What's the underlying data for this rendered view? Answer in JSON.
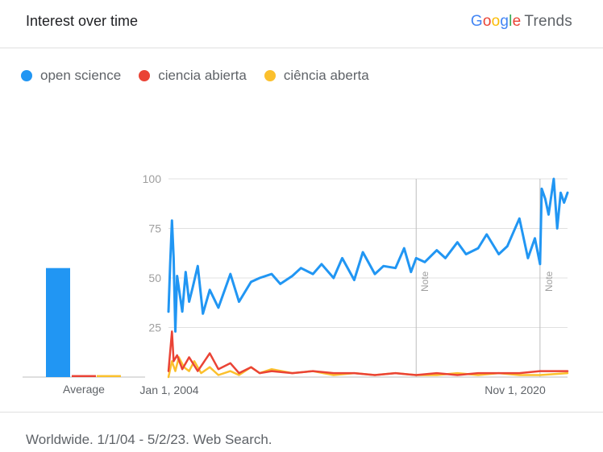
{
  "header": {
    "title": "Interest over time",
    "brand": {
      "letters": [
        "G",
        "o",
        "o",
        "g",
        "l",
        "e"
      ],
      "product": "Trends"
    }
  },
  "legend": [
    {
      "label": "open science",
      "color": "#2196F3"
    },
    {
      "label": "ciencia abierta",
      "color": "#EA4335"
    },
    {
      "label": "ciência aberta",
      "color": "#FBC02D"
    }
  ],
  "footer": {
    "text": "Worldwide. 1/1/04 - 5/2/23. Web Search."
  },
  "chart_data": {
    "type": "line",
    "title": "",
    "ylim": [
      0,
      100
    ],
    "yticks": [
      25,
      50,
      75,
      100
    ],
    "x_tick_labels": [
      "Jan 1, 2004",
      "Nov 1, 2020"
    ],
    "xlim": [
      "2004-01",
      "2023-05"
    ],
    "notes": [
      {
        "x": "2016-01",
        "label": "Note"
      },
      {
        "x": "2022-01",
        "label": "Note"
      }
    ],
    "average": {
      "label": "Average",
      "values": [
        {
          "series": "open science",
          "value": 55
        },
        {
          "series": "ciencia abierta",
          "value": 1
        },
        {
          "series": "ciência aberta",
          "value": 1
        }
      ]
    },
    "series": [
      {
        "name": "open science",
        "color": "#2196F3",
        "x": [
          "2004-01",
          "2004-02",
          "2004-03",
          "2004-04",
          "2004-05",
          "2004-06",
          "2004-09",
          "2004-11",
          "2005-01",
          "2005-03",
          "2005-06",
          "2005-09",
          "2006-01",
          "2006-06",
          "2007-01",
          "2007-06",
          "2008-01",
          "2008-06",
          "2009-01",
          "2009-06",
          "2010-01",
          "2010-06",
          "2011-01",
          "2011-06",
          "2012-01",
          "2012-06",
          "2013-01",
          "2013-06",
          "2014-01",
          "2014-06",
          "2015-01",
          "2015-06",
          "2015-10",
          "2016-01",
          "2016-06",
          "2017-01",
          "2017-06",
          "2018-01",
          "2018-06",
          "2019-01",
          "2019-06",
          "2020-01",
          "2020-06",
          "2021-01",
          "2021-06",
          "2021-10",
          "2022-01",
          "2022-02",
          "2022-04",
          "2022-06",
          "2022-09",
          "2022-11",
          "2023-01",
          "2023-03",
          "2023-05"
        ],
        "values": [
          33,
          57,
          79,
          60,
          23,
          51,
          33,
          53,
          38,
          45,
          56,
          32,
          44,
          35,
          52,
          38,
          48,
          50,
          52,
          47,
          51,
          55,
          52,
          57,
          50,
          60,
          49,
          63,
          52,
          56,
          55,
          65,
          53,
          60,
          58,
          64,
          60,
          68,
          62,
          65,
          72,
          62,
          66,
          80,
          60,
          70,
          57,
          95,
          90,
          82,
          100,
          75,
          93,
          88,
          93
        ]
      },
      {
        "name": "ciencia abierta",
        "color": "#EA4335",
        "x": [
          "2004-01",
          "2004-03",
          "2004-04",
          "2004-06",
          "2004-09",
          "2005-01",
          "2005-06",
          "2006-01",
          "2006-06",
          "2007-01",
          "2007-06",
          "2008-01",
          "2008-06",
          "2009-01",
          "2010-01",
          "2011-01",
          "2012-01",
          "2013-01",
          "2014-01",
          "2015-01",
          "2016-01",
          "2017-01",
          "2018-01",
          "2019-01",
          "2020-01",
          "2021-01",
          "2022-01",
          "2023-05"
        ],
        "values": [
          3,
          23,
          8,
          11,
          4,
          10,
          3,
          12,
          4,
          7,
          2,
          5,
          2,
          3,
          2,
          3,
          2,
          2,
          1,
          2,
          1,
          2,
          1,
          2,
          2,
          2,
          3,
          3
        ]
      },
      {
        "name": "ciência aberta",
        "color": "#FBC02D",
        "x": [
          "2004-01",
          "2004-03",
          "2004-05",
          "2004-07",
          "2004-10",
          "2005-01",
          "2005-04",
          "2005-08",
          "2006-01",
          "2006-06",
          "2007-01",
          "2007-06",
          "2008-01",
          "2008-06",
          "2009-01",
          "2010-01",
          "2011-01",
          "2012-01",
          "2013-01",
          "2014-01",
          "2015-01",
          "2016-01",
          "2017-01",
          "2018-01",
          "2019-01",
          "2020-01",
          "2021-01",
          "2022-01",
          "2023-05"
        ],
        "values": [
          0,
          8,
          3,
          10,
          5,
          3,
          8,
          2,
          5,
          1,
          3,
          1,
          5,
          2,
          4,
          2,
          3,
          1,
          2,
          1,
          2,
          1,
          1,
          2,
          1,
          2,
          1,
          1,
          2
        ]
      }
    ]
  }
}
